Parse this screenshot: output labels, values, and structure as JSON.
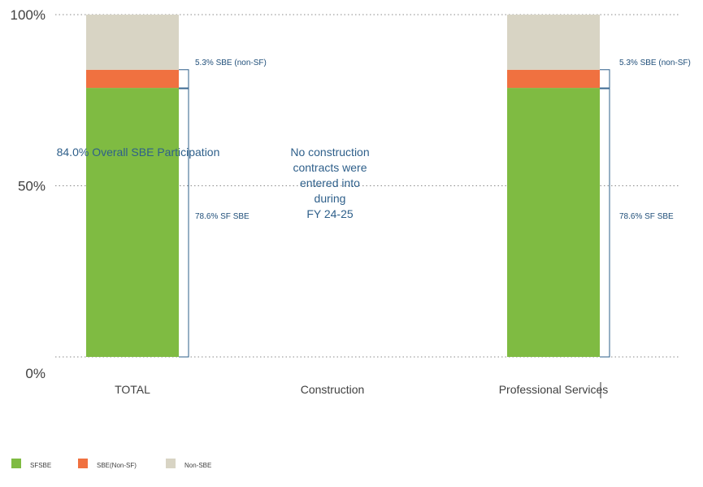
{
  "chart_data": {
    "type": "bar",
    "stacked": true,
    "categories": [
      "TOTAL",
      "Construction",
      "Professional Services"
    ],
    "series": [
      {
        "name": "SFSBE",
        "color": "#7fbb42",
        "values": [
          78.6,
          null,
          78.6
        ]
      },
      {
        "name": "SBE(Non-SF)",
        "color": "#f07140",
        "values": [
          5.3,
          null,
          5.3
        ]
      },
      {
        "name": "Non-SBE",
        "color": "#d8d4c4",
        "values": [
          16.1,
          null,
          16.1
        ]
      }
    ],
    "y_ticks": [
      "100%",
      "50%",
      "0%"
    ],
    "ylim": [
      0,
      100
    ],
    "grid": "dotted",
    "legend_position": "bottom-left",
    "annotations": {
      "total_overall": "84.0% Overall SBE Participation",
      "total_nonsf": "5.3% SBE (non-SF)",
      "total_sf": "78.6% SF SBE",
      "ps_nonsf": "5.3% SBE (non-SF)",
      "ps_sf": "78.6% SF SBE",
      "construction_note": [
        "No construction",
        "contracts were",
        "entered into",
        "during",
        "FY 24-25"
      ]
    }
  }
}
